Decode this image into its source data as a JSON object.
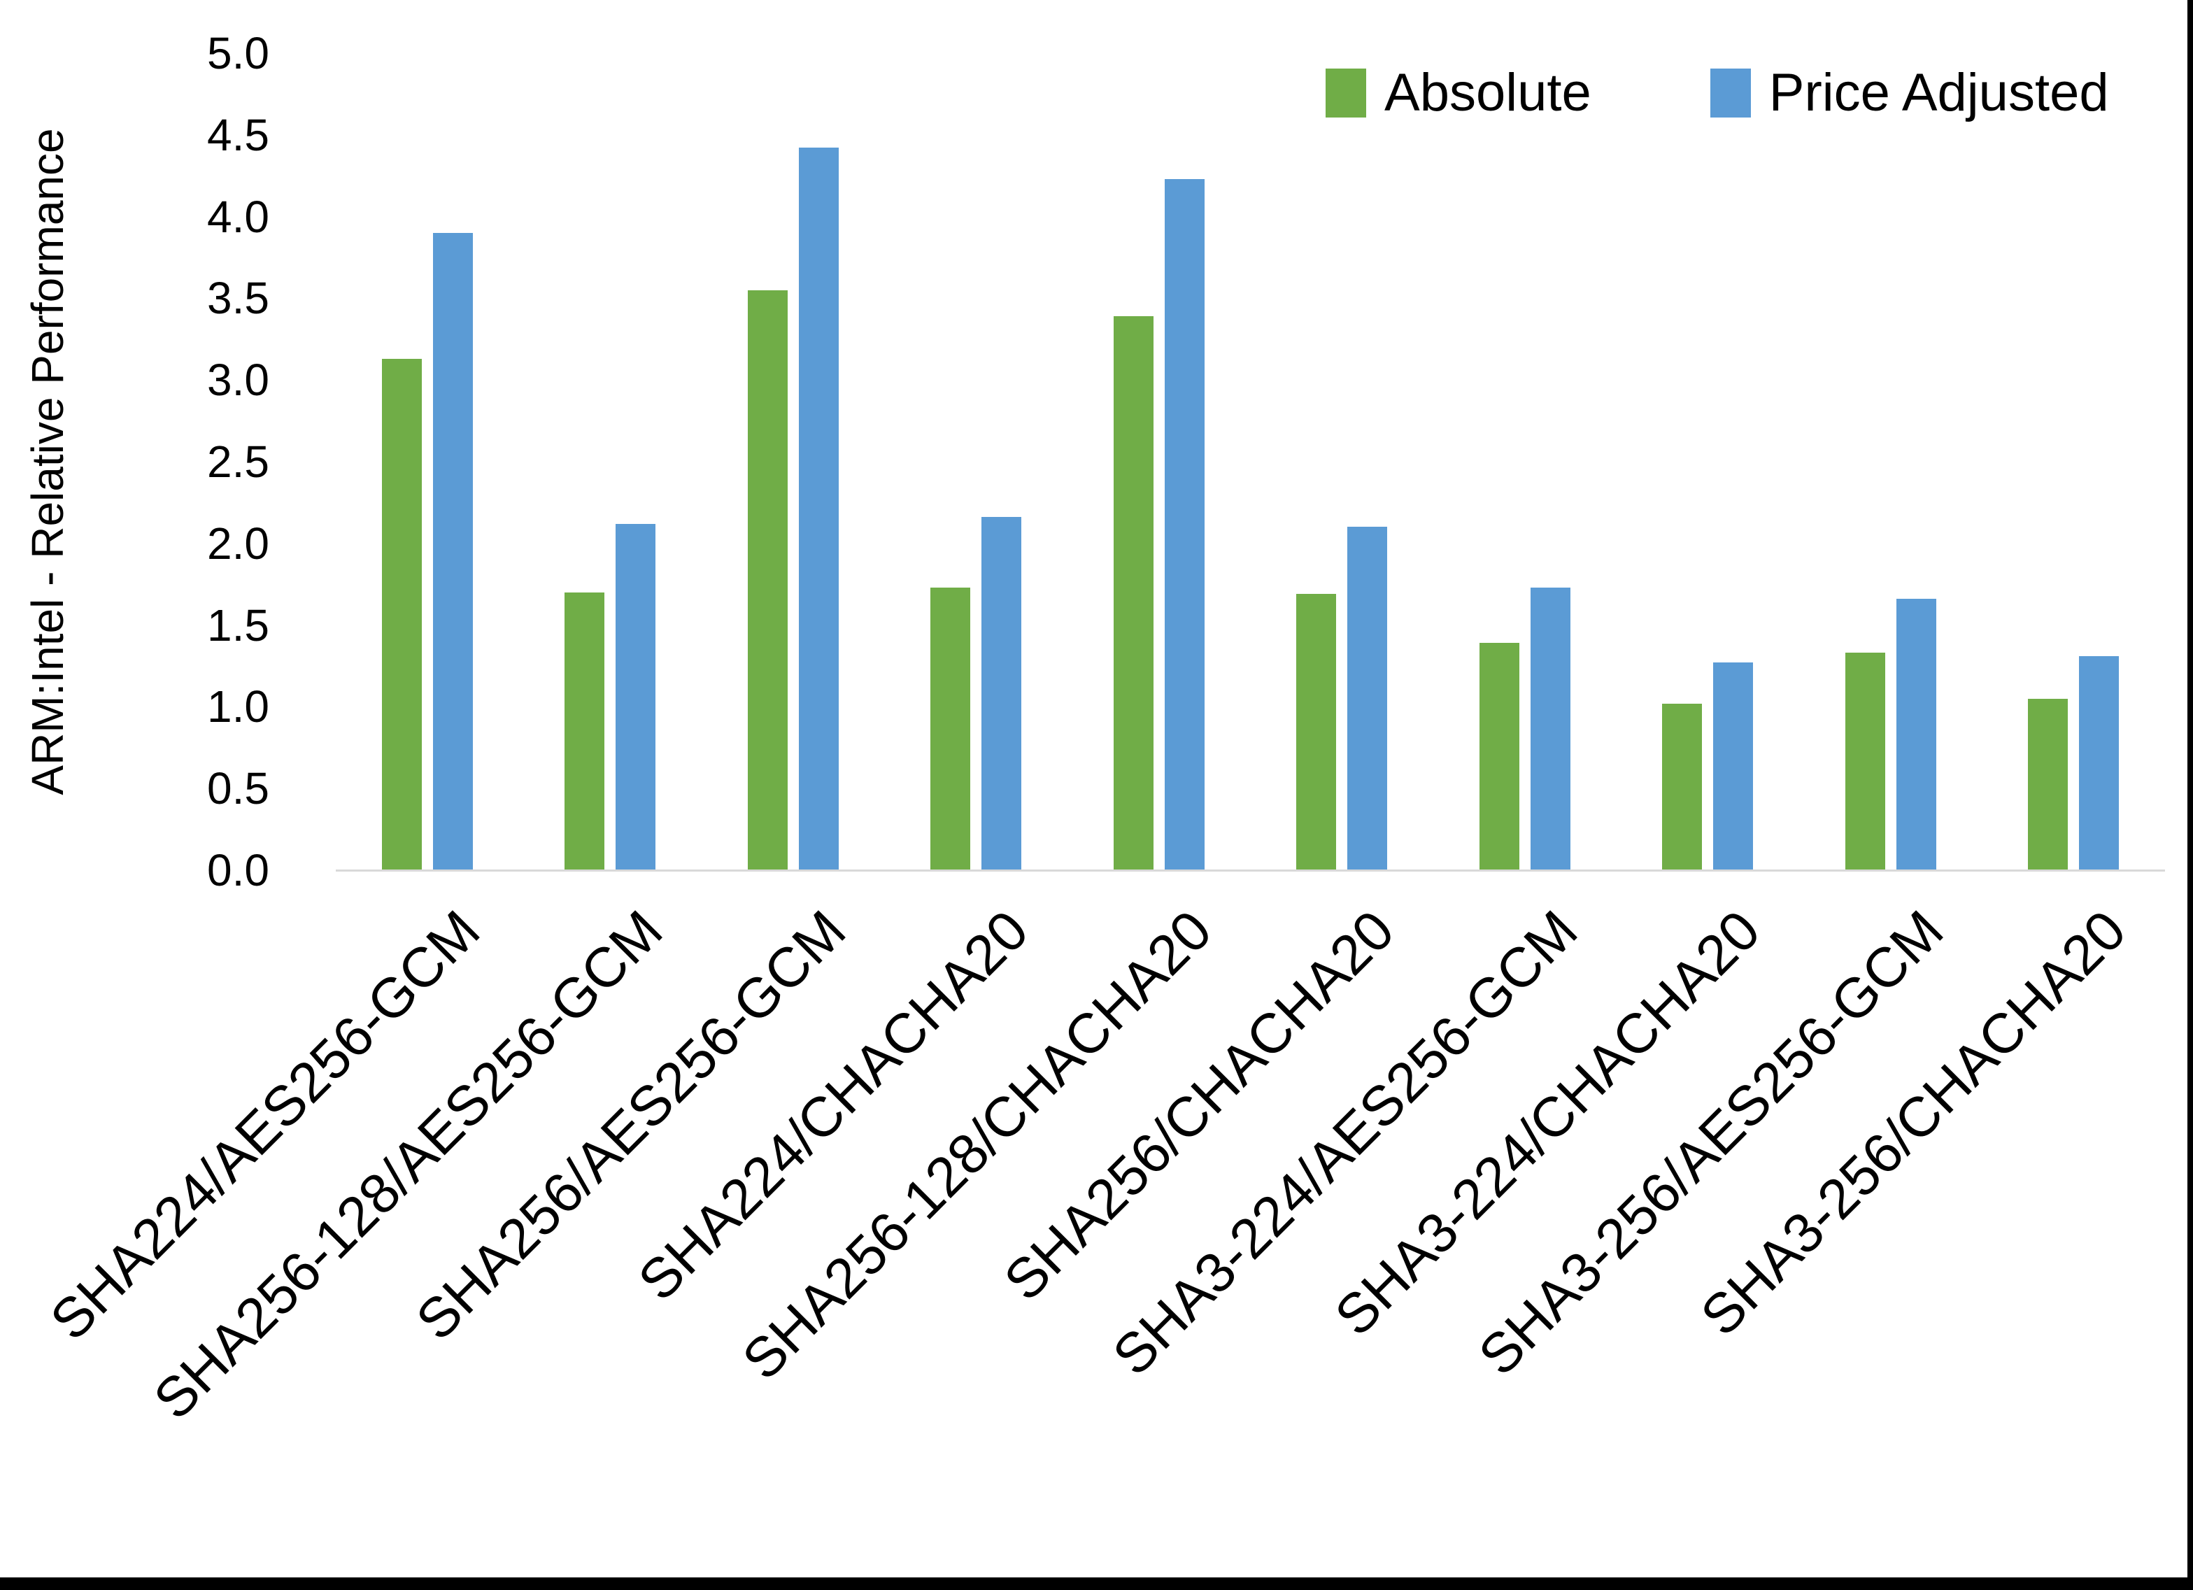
{
  "chart_data": {
    "type": "bar",
    "title": "",
    "xlabel": "",
    "ylabel": "ARM:Intel - Relative Performance",
    "ylim": [
      0,
      5
    ],
    "ytick_step": 0.5,
    "ytick_decimals": 1,
    "grid": false,
    "legend_position": "top-right",
    "categories": [
      "SHA224/AES256-GCM",
      "SHA256-128/AES256-GCM",
      "SHA256/AES256-GCM",
      "SHA224/CHACHA20",
      "SHA256-128/CHACHA20",
      "SHA256/CHACHA20",
      "SHA3-224/AES256-GCM",
      "SHA3-224/CHACHA20",
      "SHA3-256/AES256-GCM",
      "SHA3-256/CHACHA20"
    ],
    "series": [
      {
        "name": "Absolute",
        "color": "#70AD47",
        "values": [
          3.13,
          1.7,
          3.55,
          1.73,
          3.39,
          1.69,
          1.39,
          1.02,
          1.33,
          1.05
        ]
      },
      {
        "name": "Price Adjusted",
        "color": "#5B9BD5",
        "values": [
          3.9,
          2.12,
          4.42,
          2.16,
          4.23,
          2.1,
          1.73,
          1.27,
          1.66,
          1.31
        ]
      }
    ],
    "axis_line_color": "#D9D9D9",
    "text_color": "#000000"
  },
  "frame": {
    "border_color": "#000000"
  }
}
